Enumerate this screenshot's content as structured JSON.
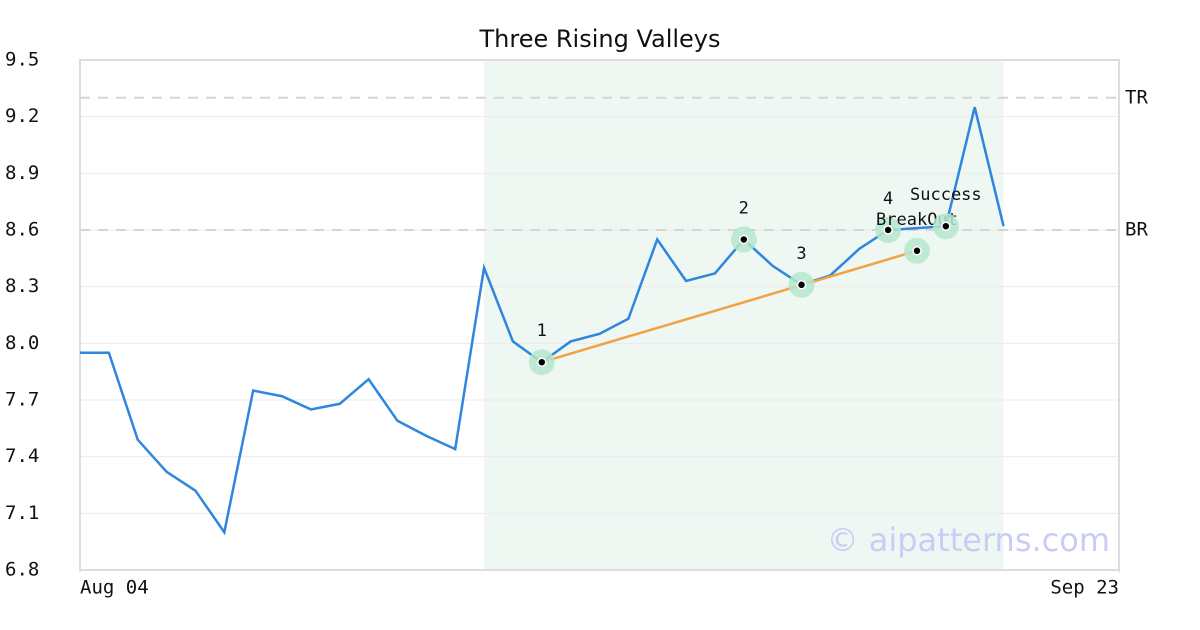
{
  "chart_data": {
    "type": "line",
    "title": "Three Rising Valleys",
    "x": [
      0,
      1,
      2,
      3,
      4,
      5,
      6,
      7,
      8,
      9,
      10,
      11,
      12,
      13,
      14,
      15,
      16,
      17,
      18,
      19,
      20,
      21,
      22,
      23,
      24,
      25,
      26,
      27,
      28,
      29,
      30,
      31,
      32
    ],
    "xlim": [
      0,
      36
    ],
    "xticks": [
      {
        "value": 0,
        "label": "Aug 04"
      },
      {
        "value": 36,
        "label": "Sep 23"
      }
    ],
    "ylim": [
      6.8,
      9.5
    ],
    "yticks": [
      6.8,
      7.1,
      7.4,
      7.7,
      {
        "value": 8,
        "label": "8.0"
      },
      8.3,
      8.6,
      8.9,
      9.2,
      9.5
    ],
    "grid": true,
    "series": [
      {
        "color": "#2e86de",
        "values": [
          7.95,
          7.95,
          7.49,
          7.32,
          7.22,
          7.0,
          7.75,
          7.72,
          7.65,
          7.68,
          7.81,
          7.59,
          7.51,
          7.44,
          8.4,
          8.01,
          7.9,
          8.01,
          8.05,
          8.13,
          8.55,
          8.33,
          8.37,
          8.55,
          8.41,
          8.31,
          8.36,
          8.5,
          8.6,
          8.61,
          8.62,
          9.25,
          8.62
        ]
      }
    ],
    "trendline": {
      "color": "#f4a142",
      "x": [
        16,
        29
      ],
      "values": [
        7.9,
        8.49
      ]
    },
    "highlight": {
      "color": "#eef7f2",
      "x": [
        14,
        32
      ]
    },
    "levels": [
      {
        "label": "TR",
        "value": 9.3
      },
      {
        "label": "BR",
        "value": 8.6
      }
    ],
    "points": [
      {
        "label": "1",
        "x": 16,
        "value": 7.9
      },
      {
        "label": "2",
        "x": 23,
        "value": 8.55
      },
      {
        "label": "3",
        "x": 25,
        "value": 8.31
      },
      {
        "label": "4",
        "x": 28,
        "value": 8.6
      },
      {
        "label": "BreakOut",
        "x": 29,
        "value": 8.49
      },
      {
        "label": "Success",
        "x": 30,
        "value": 8.62
      }
    ],
    "watermark": "© aipatterns.com"
  }
}
